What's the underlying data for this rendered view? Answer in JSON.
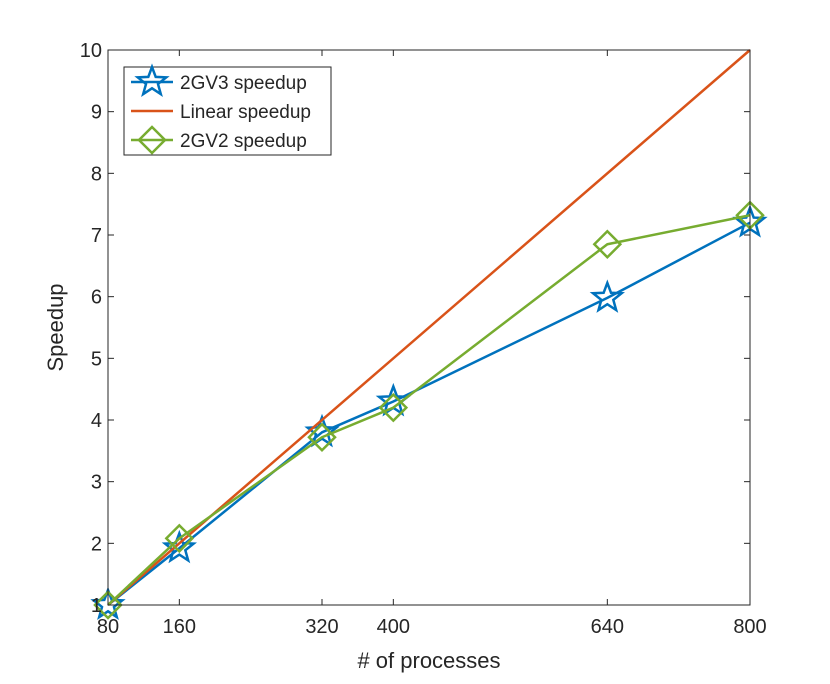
{
  "chart_data": {
    "type": "line",
    "title": "",
    "xlabel": "# of processes",
    "ylabel": "Speedup",
    "xlim": [
      80,
      800
    ],
    "ylim": [
      1,
      10
    ],
    "x_ticks": [
      80,
      160,
      320,
      400,
      640,
      800
    ],
    "y_ticks": [
      1,
      2,
      3,
      4,
      5,
      6,
      7,
      8,
      9,
      10
    ],
    "legend_position": "top-left",
    "series": [
      {
        "name": "2GV3 speedup",
        "color": "#0072BD",
        "marker": "star",
        "x": [
          80,
          160,
          320,
          400,
          640,
          800
        ],
        "values": [
          1.0,
          1.92,
          3.8,
          4.3,
          5.98,
          7.2
        ]
      },
      {
        "name": "Linear speedup",
        "color": "#D95319",
        "marker": "none",
        "x": [
          80,
          800
        ],
        "values": [
          1,
          10
        ]
      },
      {
        "name": "2GV2 speedup",
        "color": "#77AC30",
        "marker": "diamond",
        "x": [
          80,
          160,
          320,
          400,
          640,
          800
        ],
        "values": [
          1.0,
          2.08,
          3.72,
          4.2,
          6.85,
          7.32
        ]
      }
    ]
  }
}
